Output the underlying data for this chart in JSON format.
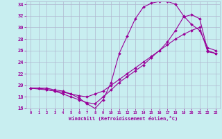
{
  "bg_color": "#c8eef0",
  "line_color": "#990099",
  "grid_color": "#b0b8d0",
  "xlabel": "Windchill (Refroidissement éolien,°C)",
  "xlim": [
    -0.5,
    23.5
  ],
  "ylim": [
    16,
    34.5
  ],
  "xticks": [
    0,
    1,
    2,
    3,
    4,
    5,
    6,
    7,
    8,
    9,
    10,
    11,
    12,
    13,
    14,
    15,
    16,
    17,
    18,
    19,
    20,
    21,
    22,
    23
  ],
  "yticks": [
    16,
    18,
    20,
    22,
    24,
    26,
    28,
    30,
    32,
    34
  ],
  "curve1_x": [
    0,
    1,
    2,
    3,
    4,
    5,
    6,
    7,
    8,
    9,
    10,
    11,
    12,
    13,
    14,
    15,
    16,
    17,
    18,
    19,
    20,
    21,
    22,
    23
  ],
  "curve1_y": [
    19.5,
    19.5,
    19.5,
    19.2,
    19.0,
    18.5,
    17.8,
    16.8,
    16.0,
    17.5,
    20.5,
    25.5,
    28.5,
    31.5,
    33.5,
    34.2,
    34.5,
    34.5,
    34.0,
    32.0,
    30.5,
    29.5,
    26.5,
    26.0
  ],
  "curve2_x": [
    0,
    1,
    2,
    3,
    4,
    5,
    6,
    7,
    8,
    9,
    10,
    11,
    12,
    13,
    14,
    15,
    16,
    17,
    18,
    19,
    20,
    21,
    22,
    23
  ],
  "curve2_y": [
    19.5,
    19.5,
    19.3,
    19.0,
    18.5,
    18.0,
    17.5,
    17.0,
    16.8,
    18.0,
    19.2,
    20.5,
    21.5,
    22.5,
    23.5,
    24.8,
    26.0,
    27.5,
    29.5,
    31.8,
    32.2,
    31.5,
    26.0,
    25.5
  ],
  "curve3_x": [
    0,
    2,
    3,
    4,
    5,
    6,
    7,
    8,
    9,
    10,
    11,
    12,
    13,
    14,
    15,
    16,
    17,
    18,
    19,
    20,
    21,
    22,
    23
  ],
  "curve3_y": [
    19.5,
    19.2,
    19.0,
    18.8,
    18.5,
    18.2,
    18.0,
    18.5,
    19.0,
    20.0,
    21.0,
    22.0,
    23.0,
    24.0,
    25.0,
    26.0,
    27.0,
    28.0,
    28.8,
    29.5,
    30.0,
    25.8,
    25.5
  ]
}
